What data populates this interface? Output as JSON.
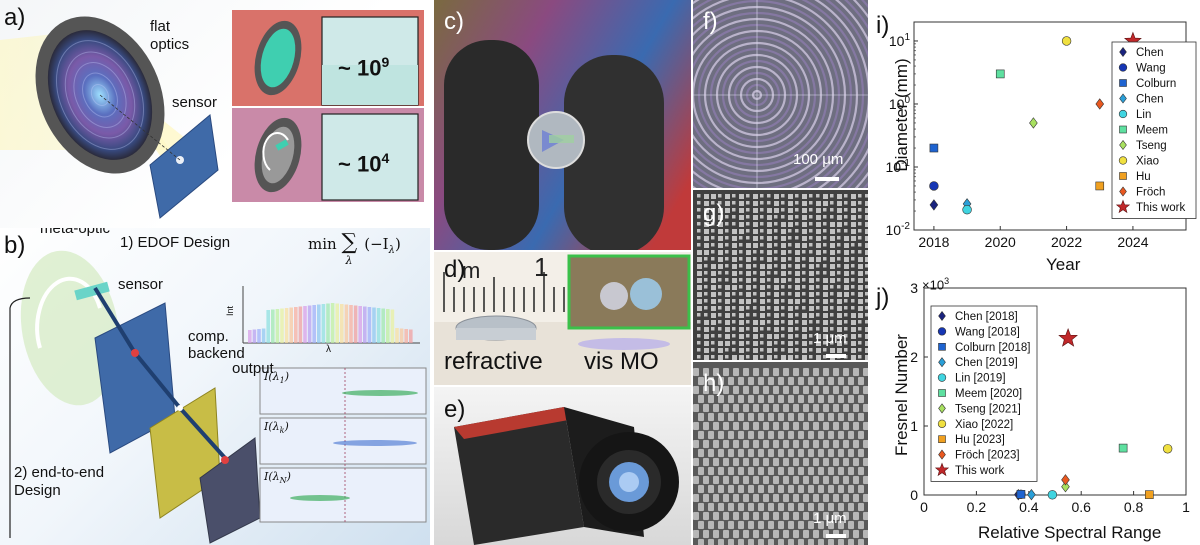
{
  "panel_labels": {
    "a": "a)",
    "b": "b)",
    "c": "c)",
    "d": "d)",
    "e": "e)",
    "f": "f)",
    "g": "g)",
    "h": "h)",
    "i": "i)",
    "j": "j)"
  },
  "panel_a": {
    "flat_optics": "flat\noptics",
    "sensor": "sensor",
    "count_top": "~ 10",
    "exp_top": "9",
    "count_bottom": "~ 10",
    "exp_bottom": "4"
  },
  "panel_b": {
    "meta_optic": "meta-optic",
    "edof": "1) EDOF Design",
    "formula_min": "min",
    "formula_sum": "∑",
    "formula_sub": "λ",
    "formula_arg": "(−I",
    "formula_arg_sub": "λ",
    "formula_close": ")",
    "sensor": "sensor",
    "comp": "comp.\nbackend",
    "output": "output",
    "int_label": "Int",
    "lambda_label": "λ",
    "e2e": "2) end-to-end\nDesign",
    "psf_labels": [
      {
        "base": "I(λ",
        "sub": "1",
        "close": ")"
      },
      {
        "base": "I(λ",
        "sub": "k",
        "close": ")"
      },
      {
        "base": "I(λ",
        "sub": "N",
        "close": ")"
      }
    ]
  },
  "panel_d": {
    "refractive": "refractive",
    "vis_mo": "vis MO",
    "ruler_m": "m",
    "ruler_1": "1"
  },
  "panel_f": {
    "scale": "100 μm"
  },
  "panel_g": {
    "scale": "1 μm"
  },
  "panel_h": {
    "scale": "1 μm"
  },
  "chart_data": [
    {
      "panel": "i",
      "type": "scatter",
      "xlabel": "Year",
      "ylabel": "Diameter (mm)",
      "yscale": "log",
      "xlim": [
        2017.4,
        2025.6
      ],
      "ylim": [
        0.01,
        20
      ],
      "xticks": [
        "2018",
        "2020",
        "2022",
        "2024"
      ],
      "yticks": [
        {
          "base": "10",
          "exp": "-2"
        },
        {
          "base": "10",
          "exp": "-1"
        },
        {
          "base": "10",
          "exp": "0"
        },
        {
          "base": "10",
          "exp": "1"
        }
      ],
      "legend_position": "right",
      "series": [
        {
          "name": "Chen",
          "marker": "diamond",
          "color": "#1a237e",
          "x": 2018,
          "y": 0.025
        },
        {
          "name": "Wang",
          "marker": "circle",
          "color": "#1636b4",
          "x": 2018,
          "y": 0.05
        },
        {
          "name": "Colburn",
          "marker": "square",
          "color": "#1e63d0",
          "x": 2018,
          "y": 0.2
        },
        {
          "name": "Chen",
          "marker": "diamond",
          "color": "#2a9fd8",
          "x": 2019,
          "y": 0.026
        },
        {
          "name": "Lin",
          "marker": "circle",
          "color": "#40d4e0",
          "x": 2019,
          "y": 0.021
        },
        {
          "name": "Meem",
          "marker": "square",
          "color": "#5ee0a0",
          "x": 2020,
          "y": 3
        },
        {
          "name": "Tseng",
          "marker": "diamond",
          "color": "#a8e060",
          "x": 2021,
          "y": 0.5
        },
        {
          "name": "Xiao",
          "marker": "circle",
          "color": "#f0e040",
          "x": 2022,
          "y": 10
        },
        {
          "name": "Hu",
          "marker": "square",
          "color": "#f0a020",
          "x": 2023,
          "y": 0.05
        },
        {
          "name": "Fröch",
          "marker": "diamond",
          "color": "#e85820",
          "x": 2023,
          "y": 1
        },
        {
          "name": "This work",
          "marker": "star",
          "color": "#c0282a",
          "x": 2024,
          "y": 10
        }
      ]
    },
    {
      "panel": "j",
      "type": "scatter",
      "xlabel": "Relative Spectral Range",
      "ylabel": "Fresnel Number",
      "multiplier": "×10",
      "multiplier_exp": "3",
      "xlim": [
        0,
        1
      ],
      "ylim": [
        0,
        3
      ],
      "xticks": [
        "0",
        "0.2",
        "0.4",
        "0.6",
        "0.8",
        "1"
      ],
      "yticks": [
        "0",
        "1",
        "2",
        "3"
      ],
      "legend_position": "top-left",
      "series": [
        {
          "name": "Chen [2018]",
          "marker": "diamond",
          "color": "#1a237e",
          "x": 0.36,
          "y": 0.005
        },
        {
          "name": "Wang [2018]",
          "marker": "circle",
          "color": "#1636b4",
          "x": 0.37,
          "y": 0.01
        },
        {
          "name": "Colburn [2018]",
          "marker": "square",
          "color": "#1e63d0",
          "x": 0.37,
          "y": 0.01
        },
        {
          "name": "Chen [2019]",
          "marker": "diamond",
          "color": "#2a9fd8",
          "x": 0.41,
          "y": 0.005
        },
        {
          "name": "Lin [2019]",
          "marker": "circle",
          "color": "#40d4e0",
          "x": 0.49,
          "y": 0.003
        },
        {
          "name": "Meem [2020]",
          "marker": "square",
          "color": "#5ee0a0",
          "x": 0.76,
          "y": 0.68
        },
        {
          "name": "Tseng [2021]",
          "marker": "diamond",
          "color": "#a8e060",
          "x": 0.54,
          "y": 0.12
        },
        {
          "name": "Xiao [2022]",
          "marker": "circle",
          "color": "#f0e040",
          "x": 0.93,
          "y": 0.67
        },
        {
          "name": "Hu [2023]",
          "marker": "square",
          "color": "#f0a020",
          "x": 0.86,
          "y": 0.005
        },
        {
          "name": "Fröch [2023]",
          "marker": "diamond",
          "color": "#e85820",
          "x": 0.54,
          "y": 0.22
        },
        {
          "name": "This work",
          "marker": "star",
          "color": "#c0282a",
          "x": 0.55,
          "y": 2.27
        }
      ]
    }
  ]
}
